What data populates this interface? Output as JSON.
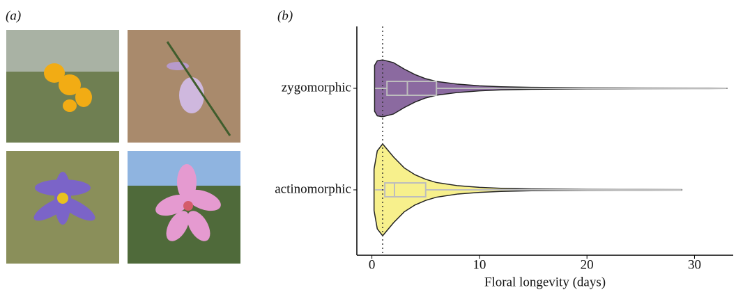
{
  "panel_a_label": "(a)",
  "chart_data": {
    "type": "violin",
    "panel_label": "(b)",
    "x_label": "Floral longevity (days)",
    "xlim": [
      -1.4,
      33.6
    ],
    "xticks": [
      0,
      10,
      20,
      30
    ],
    "reference_line": 1,
    "series": [
      {
        "name": "zygomorphic",
        "color": "#8b6aa0",
        "box": {
          "whisker_low": 0.3,
          "q1": 1.4,
          "median": 3.3,
          "q3": 6.0,
          "whisker_high": 33.0
        },
        "density_x": [
          0.25,
          0.5,
          1,
          2,
          3,
          4,
          5,
          6,
          8,
          10,
          12,
          15,
          20,
          25,
          30,
          33
        ],
        "density": [
          0.5,
          0.6,
          0.62,
          0.56,
          0.42,
          0.3,
          0.21,
          0.15,
          0.09,
          0.055,
          0.035,
          0.02,
          0.012,
          0.008,
          0.006,
          0.004
        ]
      },
      {
        "name": "actinomorphic",
        "color": "#f7f08c",
        "box": {
          "whisker_low": 0.3,
          "q1": 1.2,
          "median": 2.1,
          "q3": 5.0,
          "whisker_high": 28.8
        },
        "density_x": [
          0.2,
          0.5,
          1,
          2,
          3,
          4,
          5,
          6,
          8,
          10,
          12,
          15,
          20,
          25,
          28.8
        ],
        "density": [
          0.45,
          0.85,
          1,
          0.72,
          0.48,
          0.33,
          0.23,
          0.16,
          0.09,
          0.055,
          0.035,
          0.018,
          0.01,
          0.007,
          0.005
        ]
      }
    ]
  }
}
